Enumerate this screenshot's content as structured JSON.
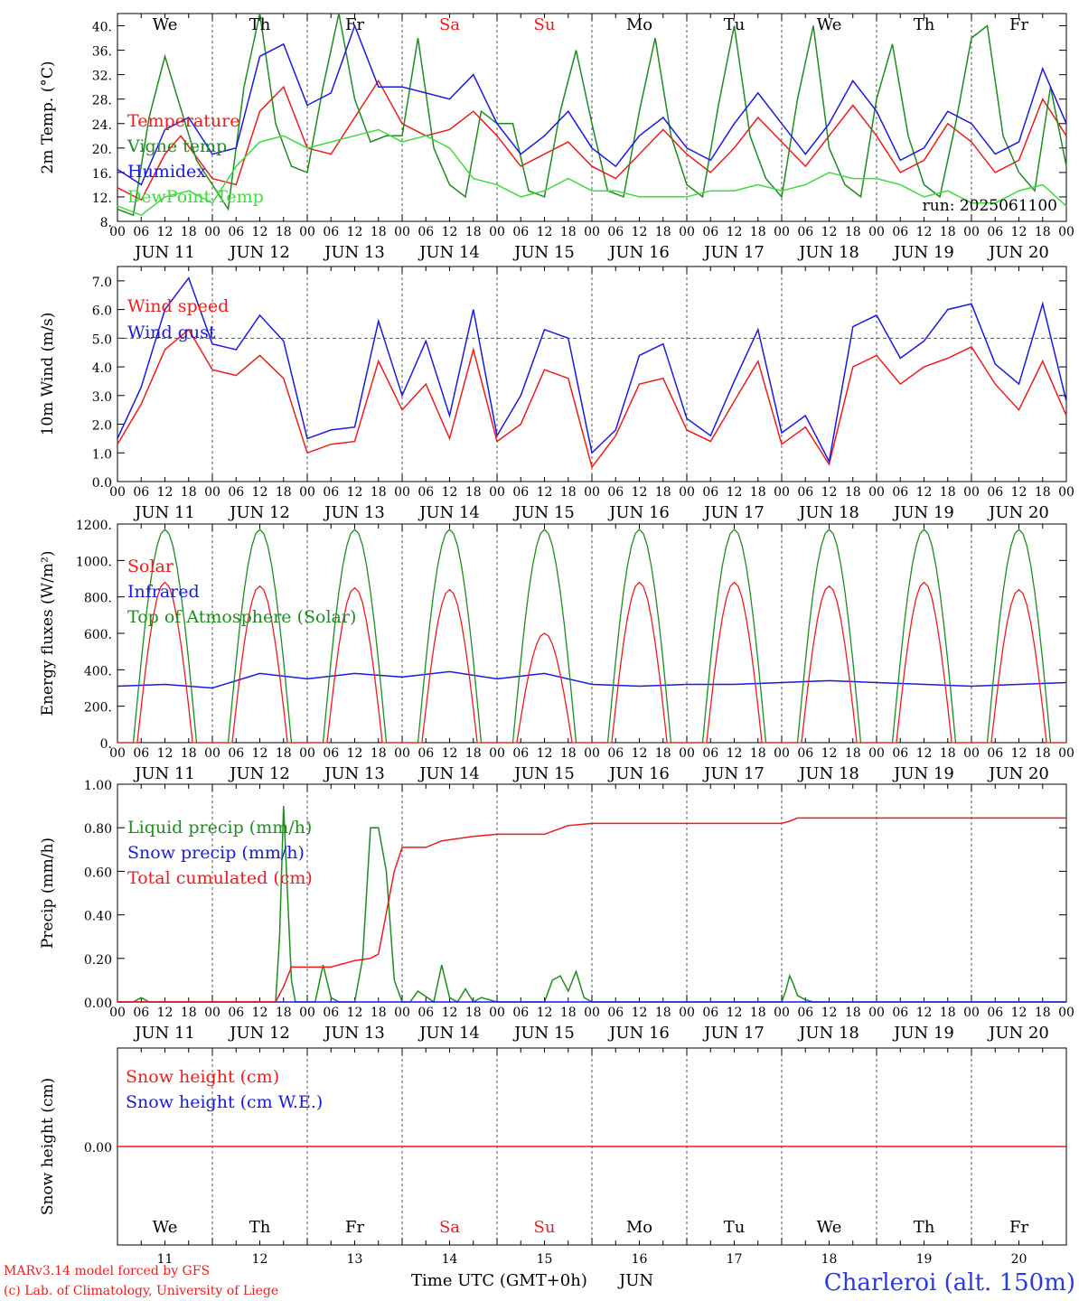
{
  "chart_data": [
    {
      "type": "line",
      "id": "temperature",
      "ylabel": "2m Temp. (°C)",
      "ylim": [
        8,
        42
      ],
      "yticks": [
        "8.",
        "12.",
        "16.",
        "20.",
        "24.",
        "28.",
        "32.",
        "36.",
        "40."
      ],
      "legend": [
        {
          "label": "Temperature",
          "color": "#ee1c1c"
        },
        {
          "label": "Vigne temp",
          "color": "#1e8c1e"
        },
        {
          "label": "Humidex",
          "color": "#1a1ae0"
        },
        {
          "label": "DewPoint Temp",
          "color": "#3ddc3d"
        }
      ],
      "annotation": "run: 2025061100",
      "series": [
        {
          "name": "Temperature",
          "color": "#ee1c1c",
          "x": [
            0,
            6,
            12,
            16,
            24,
            30,
            36,
            42,
            48,
            54,
            60,
            66,
            72,
            78,
            84,
            90,
            96,
            102,
            108,
            114,
            120,
            126,
            132,
            138,
            144,
            150,
            156,
            162,
            168,
            174,
            180,
            186,
            192,
            198,
            204,
            210,
            216,
            222,
            228,
            234,
            240
          ],
          "y": [
            13.5,
            11.5,
            19,
            22,
            15,
            14,
            26,
            30,
            20,
            19,
            25,
            31,
            24,
            22,
            23,
            26,
            22,
            17,
            19,
            21,
            17,
            15,
            19,
            23,
            19,
            16,
            20,
            25,
            21,
            17,
            22,
            27,
            22,
            16,
            18,
            24,
            21,
            16,
            18,
            28,
            22
          ]
        },
        {
          "name": "Vigne temp",
          "color": "#1e8c1e",
          "x": [
            0,
            4,
            8,
            12,
            20,
            24,
            28,
            32,
            36,
            40,
            44,
            48,
            52,
            56,
            60,
            64,
            68,
            72,
            76,
            80,
            84,
            88,
            92,
            96,
            100,
            104,
            108,
            112,
            116,
            120,
            124,
            128,
            132,
            136,
            140,
            144,
            148,
            152,
            156,
            160,
            164,
            168,
            172,
            176,
            180,
            184,
            188,
            192,
            196,
            200,
            204,
            208,
            212,
            216,
            220,
            224,
            228,
            232,
            236,
            240
          ],
          "y": [
            10,
            9,
            25,
            35,
            18,
            14,
            10,
            30,
            42,
            24,
            17,
            16,
            30,
            42,
            28,
            21,
            22,
            22,
            38,
            20,
            14,
            12,
            26,
            24,
            24,
            13,
            12,
            26,
            36,
            24,
            13,
            12,
            26,
            38,
            22,
            14,
            12,
            27,
            40,
            22,
            15,
            12,
            28,
            40,
            20,
            14,
            12,
            28,
            37,
            22,
            14,
            12,
            24,
            38,
            40,
            22,
            16,
            13,
            30,
            17
          ]
        },
        {
          "name": "Humidex",
          "color": "#1a1ae0",
          "x": [
            0,
            6,
            12,
            18,
            24,
            30,
            36,
            42,
            48,
            54,
            60,
            66,
            72,
            78,
            84,
            90,
            96,
            102,
            108,
            114,
            120,
            126,
            132,
            138,
            144,
            150,
            156,
            162,
            168,
            174,
            180,
            186,
            192,
            198,
            204,
            210,
            216,
            222,
            228,
            234,
            240
          ],
          "y": [
            16.5,
            14,
            23,
            25,
            19,
            20,
            35,
            37,
            27,
            29,
            40,
            30,
            30,
            29,
            28,
            32,
            24,
            19,
            22,
            26,
            20,
            17,
            22,
            25,
            20,
            18,
            24,
            29,
            24,
            19,
            24,
            31,
            26,
            18,
            20,
            26,
            24,
            19,
            21,
            33,
            24
          ]
        },
        {
          "name": "DewPoint Temp",
          "color": "#3ddc3d",
          "x": [
            0,
            6,
            12,
            18,
            24,
            30,
            36,
            42,
            48,
            54,
            60,
            66,
            72,
            78,
            84,
            90,
            96,
            102,
            108,
            114,
            120,
            126,
            132,
            138,
            144,
            150,
            156,
            162,
            168,
            174,
            180,
            186,
            192,
            198,
            204,
            210,
            216,
            222,
            228,
            234,
            240
          ],
          "y": [
            10.5,
            9,
            12,
            13,
            11,
            17,
            21,
            22,
            20,
            21,
            22,
            23,
            21,
            22,
            20,
            15,
            14,
            12,
            13,
            15,
            13,
            13,
            12,
            12,
            12,
            13,
            13,
            14,
            13,
            14,
            16,
            15,
            15,
            14,
            12,
            13,
            11,
            11,
            13,
            14,
            10.5
          ]
        }
      ]
    },
    {
      "type": "line",
      "id": "wind",
      "ylabel": "10m Wind (m/s)",
      "ylim": [
        0,
        7.5
      ],
      "yticks": [
        "0.0",
        "1.0",
        "2.0",
        "3.0",
        "4.0",
        "5.0",
        "6.0",
        "7.0"
      ],
      "reference_line": 5.0,
      "legend": [
        {
          "label": "Wind speed",
          "color": "#ee1c1c"
        },
        {
          "label": "Wind gust",
          "color": "#1a1ae0"
        }
      ],
      "series": [
        {
          "name": "Wind speed",
          "color": "#ee1c1c",
          "x": [
            0,
            6,
            12,
            18,
            24,
            30,
            36,
            42,
            48,
            54,
            60,
            66,
            72,
            78,
            84,
            90,
            96,
            102,
            108,
            114,
            120,
            126,
            132,
            138,
            144,
            150,
            156,
            162,
            168,
            174,
            180,
            186,
            192,
            198,
            204,
            210,
            216,
            222,
            228,
            234,
            240
          ],
          "y": [
            1.3,
            2.7,
            4.6,
            5.3,
            3.9,
            3.7,
            4.4,
            3.6,
            1.0,
            1.3,
            1.4,
            4.2,
            2.5,
            3.4,
            1.5,
            4.6,
            1.4,
            2.0,
            3.9,
            3.6,
            0.5,
            1.6,
            3.4,
            3.6,
            1.8,
            1.4,
            2.8,
            4.2,
            1.3,
            1.9,
            0.6,
            4.0,
            4.4,
            3.4,
            4.0,
            4.3,
            4.7,
            3.4,
            2.5,
            4.2,
            2.3
          ]
        },
        {
          "name": "Wind gust",
          "color": "#1a1ae0",
          "x": [
            0,
            6,
            12,
            18,
            24,
            30,
            36,
            42,
            48,
            54,
            60,
            66,
            72,
            78,
            84,
            90,
            96,
            102,
            108,
            114,
            120,
            126,
            132,
            138,
            144,
            150,
            156,
            162,
            168,
            174,
            180,
            186,
            192,
            198,
            204,
            210,
            216,
            222,
            228,
            234,
            240
          ],
          "y": [
            1.5,
            3.3,
            6.0,
            7.1,
            4.8,
            4.6,
            5.8,
            4.9,
            1.5,
            1.8,
            1.9,
            5.6,
            3.0,
            4.9,
            2.3,
            6.0,
            1.6,
            3.0,
            5.3,
            5.0,
            1.0,
            1.8,
            4.4,
            4.8,
            2.2,
            1.6,
            3.5,
            5.3,
            1.7,
            2.3,
            0.7,
            5.4,
            5.8,
            4.3,
            4.9,
            6.0,
            6.2,
            4.1,
            3.4,
            6.2,
            2.8
          ]
        }
      ]
    },
    {
      "type": "line",
      "id": "energy",
      "ylabel": "Energy fluxes (W/m²)",
      "ylim": [
        0,
        1200
      ],
      "yticks": [
        "0.",
        "200.",
        "400.",
        "600.",
        "800.",
        "1000.",
        "1200."
      ],
      "legend": [
        {
          "label": "Solar",
          "color": "#ee1c1c"
        },
        {
          "label": "Infrared",
          "color": "#1a1ae0"
        },
        {
          "label": "Top of Atmosphere (Solar)",
          "color": "#1e8c1e"
        }
      ],
      "daily_peaks": {
        "solar": [
          880,
          860,
          850,
          840,
          600,
          880,
          880,
          860,
          880,
          840
        ],
        "top_of_atmosphere": [
          1170,
          1170,
          1170,
          1170,
          1170,
          1170,
          1170,
          1170,
          1170,
          1170
        ]
      },
      "series": [
        {
          "name": "Infrared",
          "color": "#1a1ae0",
          "x": [
            0,
            12,
            24,
            36,
            48,
            60,
            72,
            84,
            96,
            108,
            120,
            132,
            144,
            156,
            168,
            180,
            192,
            204,
            216,
            228,
            240
          ],
          "y": [
            310,
            320,
            300,
            380,
            350,
            380,
            360,
            390,
            350,
            380,
            320,
            310,
            320,
            320,
            330,
            340,
            330,
            320,
            310,
            320,
            330
          ]
        }
      ]
    },
    {
      "type": "line",
      "id": "precip",
      "ylabel": "Precip (mm/h)",
      "ylim": [
        0,
        1.0
      ],
      "yticks": [
        "0.00",
        "0.20",
        "0.40",
        "0.60",
        "0.80",
        "1.00"
      ],
      "legend": [
        {
          "label": "Liquid precip (mm/h)",
          "color": "#1e8c1e"
        },
        {
          "label": "Snow precip (mm/h)",
          "color": "#1a1ae0"
        },
        {
          "label": "Total cumulated (cm)",
          "color": "#ee1c1c"
        }
      ],
      "series": [
        {
          "name": "Liquid precip (mm/h)",
          "color": "#1e8c1e",
          "x": [
            0,
            4,
            6,
            8,
            40,
            41,
            42,
            43,
            44,
            45,
            46,
            50,
            52,
            54,
            56,
            60,
            62,
            64,
            66,
            68,
            70,
            72,
            74,
            76,
            80,
            82,
            84,
            86,
            88,
            90,
            92,
            96,
            108,
            110,
            112,
            114,
            116,
            118,
            120,
            168,
            169,
            170,
            171,
            172,
            174,
            176,
            240
          ],
          "y": [
            0,
            0,
            0.02,
            0,
            0,
            0.3,
            0.9,
            0.5,
            0.1,
            0,
            0,
            0,
            0.17,
            0.02,
            0,
            0,
            0.2,
            0.8,
            0.8,
            0.6,
            0.1,
            0,
            0,
            0.05,
            0,
            0.17,
            0.02,
            0,
            0.06,
            0,
            0.02,
            0,
            0,
            0.1,
            0.12,
            0.05,
            0.14,
            0.02,
            0,
            0,
            0.05,
            0.12,
            0.08,
            0.03,
            0.01,
            0,
            0
          ]
        },
        {
          "name": "Snow precip (mm/h)",
          "color": "#1a1ae0",
          "x": [
            0,
            240
          ],
          "y": [
            0,
            0
          ]
        },
        {
          "name": "Total cumulated (cm)",
          "color": "#ee1c1c",
          "x": [
            0,
            40,
            42,
            44,
            54,
            60,
            64,
            66,
            70,
            72,
            78,
            82,
            90,
            96,
            108,
            114,
            120,
            168,
            170,
            172,
            240
          ],
          "y": [
            0,
            0,
            0.07,
            0.16,
            0.16,
            0.19,
            0.2,
            0.22,
            0.6,
            0.71,
            0.71,
            0.74,
            0.76,
            0.77,
            0.77,
            0.81,
            0.82,
            0.82,
            0.83,
            0.845,
            0.845
          ]
        }
      ]
    },
    {
      "type": "line",
      "id": "snow",
      "ylabel": "Snow height (cm)",
      "ylim": [
        -1,
        1
      ],
      "yticks": [
        "0.00"
      ],
      "legend": [
        {
          "label": "Snow height (cm)",
          "color": "#ee1c1c"
        },
        {
          "label": "Snow height (cm W.E.)",
          "color": "#1a1ae0"
        }
      ],
      "series": [
        {
          "name": "Snow height (cm)",
          "color": "#ee1c1c",
          "x": [
            0,
            240
          ],
          "y": [
            0,
            0
          ]
        }
      ]
    }
  ],
  "x_axis": {
    "hour_ticks": [
      "00",
      "06",
      "12",
      "18"
    ],
    "last_tick": "00",
    "dates": [
      "JUN 11",
      "JUN 12",
      "JUN 13",
      "JUN 14",
      "JUN 15",
      "JUN 16",
      "JUN 17",
      "JUN 18",
      "JUN 19",
      "JUN 20"
    ],
    "weekdays": [
      {
        "label": "We",
        "color": "#000000"
      },
      {
        "label": "Th",
        "color": "#000000"
      },
      {
        "label": "Fr",
        "color": "#000000"
      },
      {
        "label": "Sa",
        "color": "#ee1c1c"
      },
      {
        "label": "Su",
        "color": "#ee1c1c"
      },
      {
        "label": "Mo",
        "color": "#000000"
      },
      {
        "label": "Tu",
        "color": "#000000"
      },
      {
        "label": "We",
        "color": "#000000"
      },
      {
        "label": "Th",
        "color": "#000000"
      },
      {
        "label": "Fr",
        "color": "#000000"
      }
    ],
    "day_numbers": [
      "11",
      "12",
      "13",
      "14",
      "15",
      "16",
      "17",
      "18",
      "19",
      "20"
    ]
  },
  "footer": {
    "model": "MARv3.14 model forced by GFS",
    "credit": "(c) Lab. of Climatology, University of Liege",
    "time_axis": "Time UTC (GMT+0h)",
    "month": "JUN",
    "station": "Charleroi (alt. 150m)"
  },
  "colors": {
    "red": "#ee1c1c",
    "green": "#1e8c1e",
    "blue": "#1a1ae0",
    "light_green": "#3ddc3d",
    "station_blue": "#2a3ae8"
  }
}
